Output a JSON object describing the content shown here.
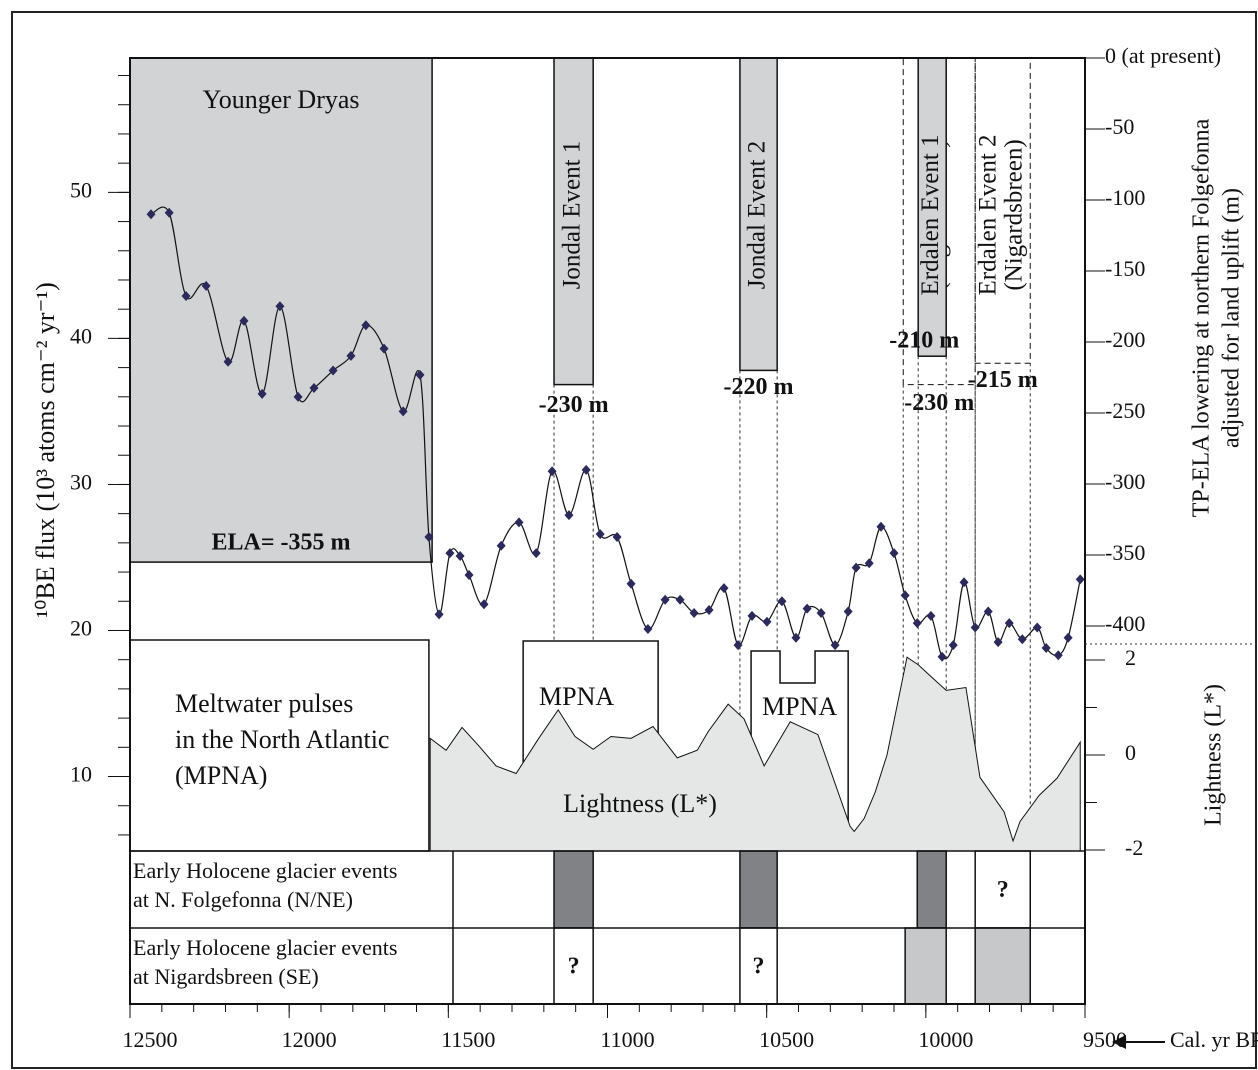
{
  "chart_data": {
    "type": "scatter",
    "x_label": "Cal. yr BP",
    "y_label": "¹⁰BE flux (10³ atoms cm⁻² yr⁻¹)",
    "y2_label": [
      "TP-ELA lowering at northern Folgefonna",
      "adjusted for land uplift (m)"
    ],
    "y3_label": "Lightness (L*)",
    "xlim": [
      12500,
      9500
    ],
    "xticks": [
      12500,
      12000,
      11500,
      11000,
      10500,
      10000,
      9500
    ],
    "ylim": [
      4.9,
      59.2
    ],
    "yticks": [
      10,
      20,
      30,
      40,
      50
    ],
    "y2lim": [
      -400,
      0
    ],
    "y2ticks": [
      {
        "value": 0,
        "label": "0 (at present)"
      },
      -50,
      -100,
      -150,
      -200,
      -250,
      -300,
      -350,
      -400
    ],
    "y3lim": [
      -2,
      2
    ],
    "y3ticks": [
      2,
      0,
      -2
    ],
    "series": [
      {
        "color": "#2b2a5a",
        "x": [
          12434,
          12377,
          12324,
          12261,
          12192,
          12142,
          12085,
          12029,
          11972,
          11922,
          11862,
          11806,
          11759,
          11702,
          11642,
          11589,
          11561,
          11529,
          11495,
          11463,
          11435,
          11388,
          11334,
          11278,
          11224,
          11174,
          11121,
          11067,
          11023,
          10970,
          10926,
          10873,
          10819,
          10772,
          10728,
          10681,
          10634,
          10590,
          10546,
          10499,
          10452,
          10408,
          10373,
          10329,
          10285,
          10244,
          10219,
          10178,
          10141,
          10100,
          10065,
          10027,
          9984,
          9949,
          9914,
          9880,
          9845,
          9804,
          9773,
          9738,
          9697,
          9650,
          9622,
          9584,
          9553,
          9515
        ],
        "values": [
          48.5,
          48.6,
          42.9,
          43.6,
          38.4,
          41.2,
          36.2,
          42.2,
          36.0,
          36.6,
          37.8,
          38.8,
          40.9,
          39.3,
          35.0,
          37.5,
          26.4,
          21.1,
          25.3,
          25.1,
          23.8,
          21.8,
          25.8,
          27.4,
          25.3,
          30.9,
          27.9,
          31.0,
          26.6,
          26.4,
          23.2,
          20.1,
          22.1,
          22.1,
          21.2,
          21.4,
          22.9,
          19.0,
          21.0,
          20.6,
          22.0,
          19.5,
          21.5,
          21.2,
          19.0,
          21.3,
          24.3,
          24.6,
          27.1,
          25.3,
          22.4,
          20.5,
          21.0,
          18.2,
          19.0,
          23.3,
          20.2,
          21.3,
          19.2,
          20.5,
          19.4,
          20.2,
          18.8,
          18.3,
          19.5,
          23.5
        ]
      },
      {
        "type": "area",
        "axis": "y3",
        "label": "Lightness (L*)",
        "color": "#e5e7e7",
        "x": [
          11557,
          11507,
          11457,
          11404,
          11350,
          11287,
          11218,
          11155,
          11102,
          11045,
          10989,
          10926,
          10857,
          10781,
          10718,
          10684,
          10621,
          10571,
          10508,
          10426,
          10339,
          10238,
          10225,
          10194,
          10159,
          10122,
          10059,
          10024,
          9987,
          9936,
          9874,
          9830,
          9754,
          9726,
          9704,
          9644,
          9588,
          9515
        ],
        "values": [
          0.35,
          0.1,
          0.58,
          0.19,
          -0.23,
          -0.39,
          0.33,
          0.95,
          0.39,
          0.12,
          0.39,
          0.35,
          0.6,
          -0.06,
          0.1,
          0.49,
          1.07,
          0.76,
          -0.23,
          0.7,
          0.43,
          -1.5,
          -1.61,
          -1.34,
          -0.78,
          0.0,
          2.06,
          1.9,
          1.67,
          1.36,
          1.42,
          -0.47,
          -1.2,
          -1.81,
          -1.4,
          -0.85,
          -0.49,
          0.27
        ]
      }
    ],
    "younger_dryas": {
      "label": "Younger Dryas",
      "start": 12500,
      "end": 11551,
      "ela": -355,
      "ela_label": "ELA= -355 m"
    },
    "events": [
      {
        "label": [
          "Jondal Event 1"
        ],
        "start": 11168,
        "end": 11045,
        "ela": -230,
        "ela_label": "-230 m"
      },
      {
        "label": [
          "Jondal Event 2"
        ],
        "start": 10584,
        "end": 10467,
        "ela": -220,
        "ela_label": "-220 m"
      },
      {
        "label": [
          "(Nigardsbreen)"
        ],
        "start": 10071,
        "end": 9845,
        "ela": -230,
        "ela_label": "-230 m",
        "dashed": true
      },
      {
        "label": [
          "Erdalen Event 1"
        ],
        "start": 10024,
        "end": 9936,
        "ela": -210,
        "ela_label": "-210 m"
      },
      {
        "label": [
          "Erdalen Event 2",
          "(Nigardsbreen)"
        ],
        "start": 9845,
        "end": 9672,
        "ela": -215,
        "ela_label": "-215 m",
        "dashed": true
      }
    ],
    "meltwater": {
      "label": [
        "Meltwater pulses",
        "in the North Atlantic",
        "(MPNA)"
      ],
      "start": 12500,
      "end": 11561
    },
    "mpna": [
      {
        "label": "MPNA",
        "start": 11265,
        "end": 10841
      },
      {
        "label": "MPNA",
        "start": 10549,
        "end": 10244,
        "notch": [
          10458,
          10348
        ]
      }
    ],
    "glacier_rows": [
      {
        "label": [
          "Early Holocene glacier events",
          "at  N. Folgefonna (N/NE)"
        ],
        "boxes": [
          {
            "start": 11168,
            "end": 11045,
            "fill": "#808285"
          },
          {
            "start": 10584,
            "end": 10467,
            "fill": "#808285"
          },
          {
            "start": 10027,
            "end": 9936,
            "fill": "#808285"
          },
          {
            "start": 9845,
            "end": 9672,
            "fill": "#ffffff",
            "text": "?"
          }
        ]
      },
      {
        "label": [
          "Early Holocene glacier events",
          "at  Nigardsbreen (SE)"
        ],
        "boxes": [
          {
            "start": 11168,
            "end": 11045,
            "fill": "#ffffff",
            "text": "?"
          },
          {
            "start": 10584,
            "end": 10467,
            "fill": "#ffffff",
            "text": "?"
          },
          {
            "start": 10065,
            "end": 9936,
            "fill": "#c7c8ca"
          },
          {
            "start": 9845,
            "end": 9672,
            "fill": "#c7c8ca"
          }
        ]
      }
    ]
  }
}
